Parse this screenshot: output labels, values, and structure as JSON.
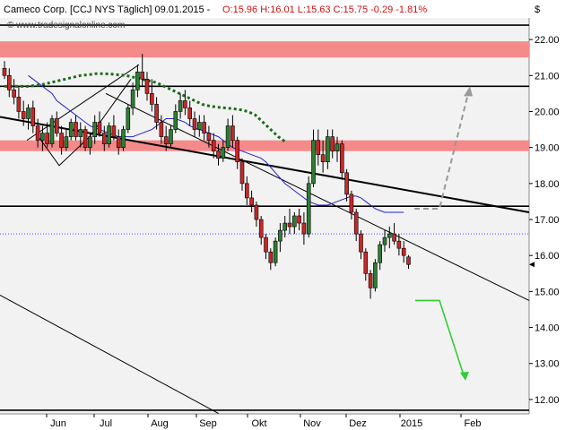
{
  "header": {
    "title": "Cameco Corp. [CCJ NYS  Täglich] 09.01.2015 - ",
    "ohlc": "O:15.96 H:16.01 L:15.63 C:15.75 -0.29 -1.81%",
    "currency": "$",
    "watermark": "© www.tradesignalonline.com"
  },
  "colors": {
    "up": "#2e7d32",
    "down": "#c62828",
    "resistance_zone": "#f48a8a",
    "ma_short": "#2222cc",
    "ma_long": "#1b6b1b",
    "projection_up": "#999999",
    "projection_down": "#33cc33",
    "plot_bg": "#f2f2f2"
  },
  "chart_data": {
    "type": "candlestick",
    "yaxis": {
      "ticks": [
        12.0,
        13.0,
        14.0,
        15.0,
        16.0,
        17.0,
        18.0,
        19.0,
        20.0,
        21.0,
        22.0
      ],
      "ylim": [
        11.6,
        22.6
      ],
      "side": "right"
    },
    "xaxis": {
      "labels": [
        "Jun",
        "Jul",
        "Aug",
        "Sep",
        "Okt",
        "Nov",
        "Dez",
        "2015",
        "Feb"
      ]
    },
    "last": 15.75,
    "horizontal_lines": [
      22.4,
      20.7,
      17.37,
      11.7
    ],
    "dotted_line": 16.6,
    "resistance_zones": [
      [
        21.5,
        21.95
      ],
      [
        18.9,
        19.2
      ]
    ],
    "trendlines": [
      {
        "name": "main-downtrend",
        "from": [
          "start",
          19.85
        ],
        "to": [
          "end",
          17.2
        ]
      },
      {
        "name": "upper-channel",
        "from": [
          "Jul",
          20.5
        ],
        "to": [
          "end",
          14.75
        ]
      },
      {
        "name": "lower-channel",
        "from": [
          "start",
          14.9
        ],
        "to": [
          "Okt",
          11.0
        ]
      }
    ],
    "candles": [
      [
        21.2,
        21.4,
        20.9,
        21.0
      ],
      [
        21.0,
        21.2,
        20.4,
        20.6
      ],
      [
        20.6,
        20.9,
        20.2,
        20.4
      ],
      [
        20.4,
        20.7,
        19.8,
        20.0
      ],
      [
        20.0,
        20.3,
        19.6,
        19.8
      ],
      [
        19.8,
        20.2,
        19.5,
        20.1
      ],
      [
        20.1,
        20.3,
        19.4,
        19.6
      ],
      [
        19.6,
        19.8,
        19.0,
        19.2
      ],
      [
        19.2,
        19.6,
        18.9,
        19.4
      ],
      [
        19.4,
        19.7,
        19.0,
        19.1
      ],
      [
        19.1,
        19.9,
        19.0,
        19.8
      ],
      [
        19.8,
        20.0,
        19.3,
        19.4
      ],
      [
        19.4,
        19.6,
        18.8,
        19.0
      ],
      [
        19.0,
        19.5,
        18.9,
        19.3
      ],
      [
        19.3,
        19.8,
        19.2,
        19.7
      ],
      [
        19.7,
        19.9,
        19.2,
        19.3
      ],
      [
        19.3,
        19.7,
        19.0,
        19.5
      ],
      [
        19.5,
        19.6,
        18.9,
        19.0
      ],
      [
        19.0,
        19.4,
        18.8,
        19.3
      ],
      [
        19.3,
        19.9,
        19.1,
        19.7
      ],
      [
        19.7,
        20.0,
        19.3,
        19.4
      ],
      [
        19.4,
        19.6,
        18.9,
        19.1
      ],
      [
        19.1,
        19.7,
        19.0,
        19.6
      ],
      [
        19.6,
        19.9,
        19.2,
        19.3
      ],
      [
        19.3,
        19.5,
        18.8,
        19.0
      ],
      [
        19.0,
        19.6,
        18.9,
        19.5
      ],
      [
        19.5,
        20.2,
        19.4,
        20.1
      ],
      [
        20.1,
        20.8,
        19.9,
        20.6
      ],
      [
        20.6,
        21.3,
        20.4,
        21.1
      ],
      [
        21.1,
        21.6,
        20.7,
        20.9
      ],
      [
        20.9,
        21.1,
        20.3,
        20.5
      ],
      [
        20.5,
        20.9,
        20.0,
        20.2
      ],
      [
        20.2,
        20.4,
        19.5,
        19.7
      ],
      [
        19.7,
        19.9,
        19.1,
        19.3
      ],
      [
        19.3,
        19.6,
        18.9,
        19.1
      ],
      [
        19.1,
        19.6,
        19.0,
        19.5
      ],
      [
        19.5,
        20.2,
        19.4,
        20.0
      ],
      [
        20.0,
        20.5,
        19.8,
        20.3
      ],
      [
        20.3,
        20.6,
        19.9,
        20.1
      ],
      [
        20.1,
        20.3,
        19.6,
        19.8
      ],
      [
        19.8,
        20.0,
        19.3,
        19.5
      ],
      [
        19.5,
        19.9,
        19.3,
        19.7
      ],
      [
        19.7,
        19.9,
        19.2,
        19.4
      ],
      [
        19.4,
        19.6,
        19.0,
        19.2
      ],
      [
        19.2,
        19.4,
        18.7,
        18.9
      ],
      [
        18.9,
        19.1,
        18.5,
        18.7
      ],
      [
        18.7,
        19.2,
        18.6,
        19.0
      ],
      [
        19.0,
        19.8,
        18.9,
        19.6
      ],
      [
        19.6,
        19.9,
        19.0,
        19.2
      ],
      [
        19.2,
        19.3,
        18.4,
        18.6
      ],
      [
        18.6,
        18.7,
        17.8,
        18.0
      ],
      [
        18.0,
        18.2,
        17.4,
        17.6
      ],
      [
        17.6,
        17.8,
        17.2,
        17.4
      ],
      [
        17.4,
        17.5,
        16.8,
        17.0
      ],
      [
        17.0,
        17.1,
        16.3,
        16.5
      ],
      [
        16.5,
        16.6,
        15.9,
        16.1
      ],
      [
        16.1,
        16.2,
        15.6,
        15.8
      ],
      [
        15.8,
        16.5,
        15.7,
        16.4
      ],
      [
        16.4,
        16.9,
        16.1,
        16.7
      ],
      [
        16.7,
        17.1,
        16.5,
        16.9
      ],
      [
        16.9,
        17.3,
        16.6,
        16.8
      ],
      [
        16.8,
        17.2,
        16.6,
        17.1
      ],
      [
        17.1,
        17.3,
        16.7,
        16.9
      ],
      [
        16.9,
        17.2,
        16.3,
        16.6
      ],
      [
        16.6,
        18.2,
        16.5,
        18.0
      ],
      [
        18.0,
        19.5,
        17.9,
        19.2
      ],
      [
        19.2,
        19.5,
        18.5,
        18.8
      ],
      [
        18.8,
        19.2,
        18.3,
        18.6
      ],
      [
        18.6,
        19.5,
        18.4,
        19.3
      ],
      [
        19.3,
        19.5,
        18.7,
        18.9
      ],
      [
        18.9,
        19.3,
        18.6,
        19.1
      ],
      [
        19.1,
        19.2,
        18.1,
        18.3
      ],
      [
        18.3,
        18.4,
        17.5,
        17.7
      ],
      [
        17.7,
        17.8,
        17.0,
        17.2
      ],
      [
        17.2,
        17.3,
        16.4,
        16.6
      ],
      [
        16.6,
        16.7,
        15.9,
        16.1
      ],
      [
        16.1,
        16.2,
        15.3,
        15.5
      ],
      [
        15.5,
        15.6,
        14.8,
        15.1
      ],
      [
        15.1,
        15.9,
        15.0,
        15.8
      ],
      [
        15.8,
        16.4,
        15.6,
        16.3
      ],
      [
        16.3,
        16.7,
        16.1,
        16.5
      ],
      [
        16.5,
        16.8,
        16.2,
        16.6
      ],
      [
        16.6,
        16.9,
        16.3,
        16.4
      ],
      [
        16.4,
        16.6,
        16.0,
        16.2
      ],
      [
        16.2,
        16.4,
        15.8,
        16.0
      ],
      [
        15.96,
        16.01,
        15.63,
        15.75
      ]
    ],
    "moving_average_short": [
      21.0,
      20.9,
      20.8,
      20.7,
      20.6,
      20.5,
      20.3,
      20.2,
      20.1,
      20.0,
      19.9,
      19.8,
      19.7,
      19.6,
      19.55,
      19.5,
      19.45,
      19.4,
      19.35,
      19.3,
      19.3,
      19.3,
      19.3,
      19.35,
      19.4,
      19.45,
      19.5,
      19.6,
      19.7,
      19.8,
      19.8,
      19.8,
      19.75,
      19.7,
      19.6,
      19.55,
      19.5,
      19.45,
      19.4,
      19.35,
      19.3,
      19.2,
      19.1,
      19.0,
      18.95,
      18.9,
      18.85,
      18.8,
      18.75,
      18.7,
      18.6,
      18.45,
      18.3,
      18.15,
      18.0,
      17.9,
      17.8,
      17.7,
      17.6,
      17.5,
      17.45,
      17.4,
      17.4,
      17.4,
      17.45,
      17.5,
      17.55,
      17.6,
      17.65,
      17.65,
      17.6,
      17.5,
      17.4,
      17.3,
      17.25,
      17.2,
      17.2,
      17.2,
      17.2,
      17.2
    ],
    "moving_average_long": [
      20.7,
      20.7,
      20.7,
      20.7,
      20.72,
      20.75,
      20.8,
      20.85,
      20.9,
      20.95,
      21.0,
      21.02,
      21.05,
      21.05,
      21.04,
      21.02,
      21.0,
      20.95,
      20.9,
      20.85,
      20.8,
      20.7,
      20.6,
      20.5,
      20.4,
      20.3,
      20.2,
      20.15,
      20.12,
      20.1,
      20.08,
      20.05,
      20.0,
      19.9,
      19.7,
      19.5,
      19.3,
      19.15
    ]
  },
  "annotations": {
    "projection_up": {
      "from": [
        17.3,
        "Dez"
      ],
      "to": [
        20.5,
        "Feb"
      ]
    },
    "projection_down": {
      "from": [
        14.75,
        "Dez"
      ],
      "to": [
        12.6,
        "Feb"
      ]
    }
  }
}
